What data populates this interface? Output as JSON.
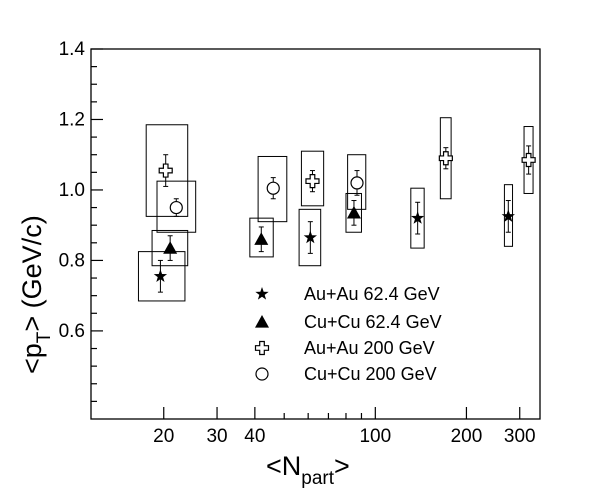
{
  "chart_data": {
    "type": "scatter",
    "title": "",
    "x_scale": "log",
    "xlabel": {
      "main": "<N",
      "sub": "part",
      "close": ">"
    },
    "ylabel": {
      "main": "<p",
      "sub": "T",
      "close": "> (GeV/c)"
    },
    "xlim": [
      11.5,
      350
    ],
    "ylim": [
      0.35,
      1.4
    ],
    "x_ticks": [
      {
        "value": 20,
        "label": "20"
      },
      {
        "value": 30,
        "label": "30"
      },
      {
        "value": 40,
        "label": "40"
      },
      {
        "value": 100,
        "label": "100"
      },
      {
        "value": 200,
        "label": "200"
      },
      {
        "value": 300,
        "label": "300"
      }
    ],
    "y_ticks": [
      {
        "value": 0.6,
        "label": "0.6"
      },
      {
        "value": 0.8,
        "label": "0.8"
      },
      {
        "value": 1.0,
        "label": "1.0"
      },
      {
        "value": 1.2,
        "label": "1.2"
      },
      {
        "value": 1.4,
        "label": "1.4"
      }
    ],
    "legend_position": "bottom-center",
    "series": [
      {
        "name": "Au+Au 62.4 GeV",
        "marker": "star",
        "points": [
          {
            "x": 19.5,
            "y": 0.755,
            "err": 0.045,
            "sys_x": [
              16.5,
              23.5
            ],
            "sys_y": [
              0.685,
              0.825
            ]
          },
          {
            "x": 61,
            "y": 0.865,
            "err": 0.045,
            "sys_x": [
              56,
              66
            ],
            "sys_y": [
              0.785,
              0.945
            ]
          },
          {
            "x": 138,
            "y": 0.92,
            "err": 0.045,
            "sys_x": [
              131,
              145
            ],
            "sys_y": [
              0.835,
              1.005
            ]
          },
          {
            "x": 275,
            "y": 0.925,
            "err": 0.045,
            "sys_x": [
              267,
              284
            ],
            "sys_y": [
              0.84,
              1.015
            ]
          }
        ]
      },
      {
        "name": "Cu+Cu 62.4 GeV",
        "marker": "triangle",
        "points": [
          {
            "x": 21,
            "y": 0.835,
            "err": 0.035,
            "sys_x": [
              18.3,
              24
            ],
            "sys_y": [
              0.785,
              0.885
            ]
          },
          {
            "x": 42,
            "y": 0.86,
            "err": 0.035,
            "sys_x": [
              38.5,
              46
            ],
            "sys_y": [
              0.81,
              0.92
            ]
          },
          {
            "x": 85,
            "y": 0.935,
            "err": 0.035,
            "sys_x": [
              80,
              90
            ],
            "sys_y": [
              0.88,
              0.99
            ]
          }
        ]
      },
      {
        "name": "Au+Au 200  GeV",
        "marker": "cross",
        "points": [
          {
            "x": 20.3,
            "y": 1.055,
            "err": 0.045,
            "sys_x": [
              17.5,
              24
            ],
            "sys_y": [
              0.925,
              1.185
            ]
          },
          {
            "x": 62,
            "y": 1.025,
            "err": 0.03,
            "sys_x": [
              57,
              67.5
            ],
            "sys_y": [
              0.955,
              1.11
            ]
          },
          {
            "x": 171,
            "y": 1.09,
            "err": 0.03,
            "sys_x": [
              164,
              178
            ],
            "sys_y": [
              0.975,
              1.205
            ]
          },
          {
            "x": 321,
            "y": 1.085,
            "err": 0.04,
            "sys_x": [
              310,
              332
            ],
            "sys_y": [
              0.99,
              1.18
            ]
          }
        ]
      },
      {
        "name": "Cu+Cu 200 GeV",
        "marker": "circle",
        "points": [
          {
            "x": 22,
            "y": 0.95,
            "err": 0.025,
            "sys_x": [
              19,
              25.5
            ],
            "sys_y": [
              0.88,
              1.025
            ]
          },
          {
            "x": 46,
            "y": 1.005,
            "err": 0.03,
            "sys_x": [
              41,
              51
            ],
            "sys_y": [
              0.91,
              1.095
            ]
          },
          {
            "x": 87,
            "y": 1.02,
            "err": 0.035,
            "sys_x": [
              81,
              93
            ],
            "sys_y": [
              0.945,
              1.1
            ]
          }
        ]
      }
    ]
  }
}
